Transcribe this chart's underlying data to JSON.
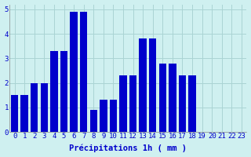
{
  "bar_values": [
    1.5,
    1.5,
    2.0,
    2.0,
    3.3,
    3.3,
    4.9,
    4.9,
    0.9,
    1.3,
    1.3,
    2.3,
    2.3,
    3.8,
    3.8,
    2.8,
    2.8,
    2.3,
    2.3,
    0.0,
    0.0,
    0.0,
    0.0,
    0.0
  ],
  "categories": [
    "0",
    "1",
    "2",
    "3",
    "4",
    "5",
    "6",
    "7",
    "8",
    "9",
    "10",
    "11",
    "12",
    "13",
    "14",
    "15",
    "16",
    "17",
    "18",
    "19",
    "20",
    "21",
    "22",
    "23"
  ],
  "bar_color": "#0000cc",
  "background_color": "#cff0f0",
  "grid_color": "#aad4d4",
  "axis_label_color": "#0000cc",
  "xlabel": "Précipitations 1h ( mm )",
  "ylim": [
    0,
    5.2
  ],
  "yticks": [
    0,
    1,
    2,
    3,
    4,
    5
  ],
  "xlabel_fontsize": 7.5,
  "tick_fontsize": 6.5
}
